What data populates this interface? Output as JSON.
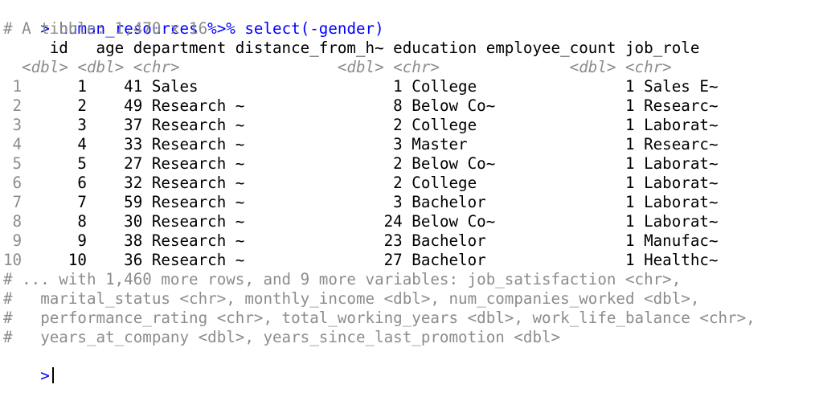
{
  "prompt_symbol": ">",
  "command": "human_resources %>% select(-gender)",
  "summary_line": "# A tibble: 1,470 x 16",
  "header_row": "     id   age department distance_from_h~ education employee_count job_role",
  "types_row": {
    "indent": "  ",
    "text": "<dbl> <dbl> <chr>                 <dbl> <chr>              <dbl> <chr>"
  },
  "rows": [
    {
      "n": " 1",
      "text": "      1    41 Sales                     1 College                1 Sales E~"
    },
    {
      "n": " 2",
      "text": "      2    49 Research ~                8 Below Co~              1 Researc~"
    },
    {
      "n": " 3",
      "text": "      3    37 Research ~                2 College                1 Laborat~"
    },
    {
      "n": " 4",
      "text": "      4    33 Research ~                3 Master                 1 Researc~"
    },
    {
      "n": " 5",
      "text": "      5    27 Research ~                2 Below Co~              1 Laborat~"
    },
    {
      "n": " 6",
      "text": "      6    32 Research ~                2 College                1 Laborat~"
    },
    {
      "n": " 7",
      "text": "      7    59 Research ~                3 Bachelor               1 Laborat~"
    },
    {
      "n": " 8",
      "text": "      8    30 Research ~               24 Below Co~              1 Laborat~"
    },
    {
      "n": " 9",
      "text": "      9    38 Research ~               23 Bachelor               1 Manufac~"
    },
    {
      "n": "10",
      "text": "     10    36 Research ~               27 Bachelor               1 Healthc~"
    }
  ],
  "footer": [
    "# ... with 1,460 more rows, and 9 more variables: job_satisfaction <chr>,",
    "#   marital_status <chr>, monthly_income <dbl>, num_companies_worked <dbl>,",
    "#   performance_rating <chr>, total_working_years <dbl>, work_life_balance <chr>,",
    "#   years_at_company <dbl>, years_since_last_promotion <dbl>"
  ]
}
